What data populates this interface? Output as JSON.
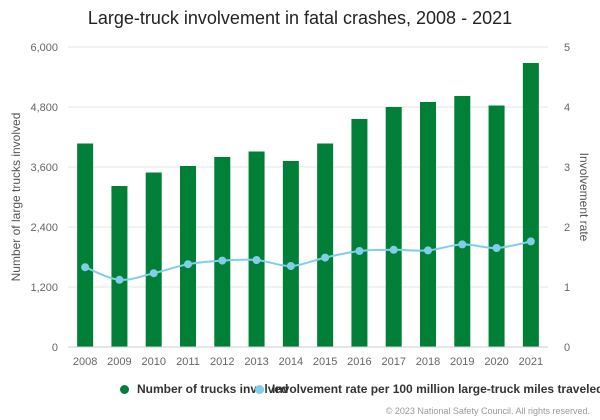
{
  "chart_data": {
    "type": "bar",
    "title": "Large-truck involvement in fatal crashes, 2008 - 2021",
    "categories": [
      "2008",
      "2009",
      "2010",
      "2011",
      "2012",
      "2013",
      "2014",
      "2015",
      "2016",
      "2017",
      "2018",
      "2019",
      "2020",
      "2021"
    ],
    "series": [
      {
        "name": "Number of trucks involved",
        "type": "bar",
        "axis": "left",
        "color": "#008037",
        "values": [
          4070,
          3220,
          3490,
          3620,
          3800,
          3910,
          3720,
          4070,
          4560,
          4800,
          4900,
          5020,
          4830,
          5680
        ]
      },
      {
        "name": "Involvement rate per 100 million large-truck miles traveled",
        "type": "line",
        "axis": "right",
        "color": "#7fcfea",
        "values": [
          1.33,
          1.12,
          1.23,
          1.38,
          1.44,
          1.45,
          1.35,
          1.49,
          1.6,
          1.62,
          1.61,
          1.71,
          1.65,
          1.76
        ]
      }
    ],
    "ylabel": "Number of large trucks involved",
    "ylim": [
      0,
      6000
    ],
    "yticks": [
      "0",
      "1,200",
      "2,400",
      "3,600",
      "4,800",
      "6,000"
    ],
    "y2label": "Involvement rate",
    "y2lim": [
      0,
      5
    ],
    "y2ticks": [
      "0",
      "1",
      "2",
      "3",
      "4",
      "5"
    ],
    "grid": true,
    "legend_position": "bottom"
  },
  "legend": {
    "item1": "Number of trucks involved",
    "item2": "Involvement rate per 100 million large-truck miles traveled"
  },
  "credits": "© 2023 National Safety Council. All rights reserved."
}
